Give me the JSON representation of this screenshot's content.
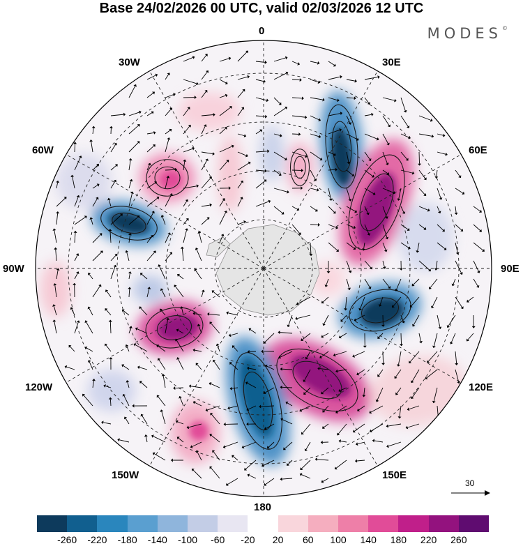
{
  "title": "Base 24/02/2026 00 UTC, valid 02/03/2026 12 UTC",
  "brand": "MODES",
  "brand_mark": "©",
  "longitude_labels": {
    "n0": "0",
    "e30": "30E",
    "e60": "60E",
    "e90": "90E",
    "e120": "120E",
    "e150": "150E",
    "s180": "180",
    "w150": "150W",
    "w120": "120W",
    "w90": "90W",
    "w60": "60W",
    "w30": "30W"
  },
  "reference_vector": "30",
  "colorbar": {
    "colors": [
      "#0d3a5c",
      "#115f8f",
      "#2a86bd",
      "#5a9fd0",
      "#8fb5dc",
      "#c3cde6",
      "#e8e6f2",
      "#ffffff",
      "#f9d6dc",
      "#f5aebf",
      "#ee7fa8",
      "#e14c98",
      "#c01f8a",
      "#93127e",
      "#5f0c70"
    ],
    "ticks": [
      "-260",
      "-220",
      "-180",
      "-140",
      "-100",
      "-60",
      "-20",
      "20",
      "60",
      "100",
      "140",
      "180",
      "220",
      "260"
    ]
  }
}
